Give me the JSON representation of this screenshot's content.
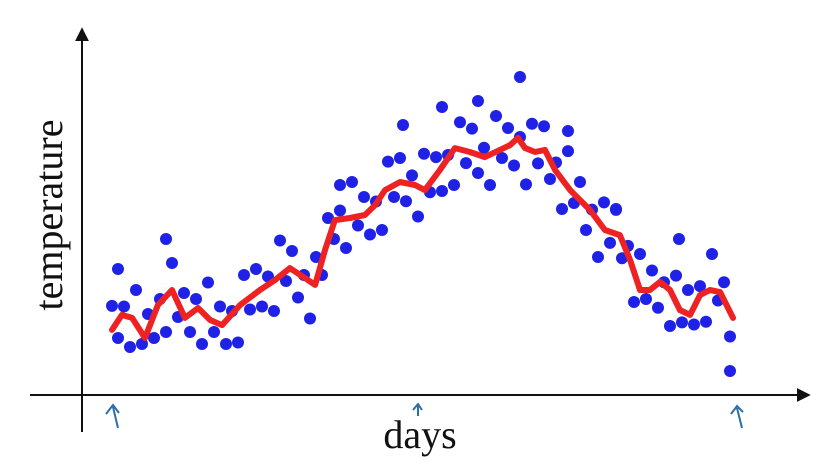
{
  "chart_data": {
    "type": "scatter",
    "x_label": "days",
    "y_label": "temperature",
    "xlim": [
      0,
      241
    ],
    "ylim": [
      0,
      120
    ],
    "series": [
      {
        "type": "scatter",
        "color": "#1f22e6",
        "x": [
          10,
          12,
          14,
          16,
          18,
          20,
          22,
          24,
          26,
          28,
          30,
          32,
          34,
          36,
          38,
          40,
          42,
          44,
          46,
          48,
          50,
          52,
          54,
          56,
          58,
          60,
          62,
          64,
          66,
          68,
          70,
          72,
          74,
          76,
          78,
          80,
          82,
          84,
          86,
          88,
          90,
          92,
          94,
          96,
          98,
          100,
          102,
          104,
          106,
          108,
          110,
          112,
          114,
          116,
          118,
          120,
          122,
          124,
          126,
          128,
          130,
          132,
          134,
          136,
          138,
          140,
          142,
          144,
          146,
          148,
          150,
          152,
          154,
          156,
          158,
          160,
          162,
          164,
          166,
          168,
          170,
          172,
          174,
          176,
          178,
          180,
          182,
          184,
          186,
          188,
          190,
          192,
          194,
          196,
          198,
          200,
          202,
          204,
          206,
          208,
          210,
          212,
          214,
          216,
          146,
          132,
          162,
          107,
          178,
          199,
          216,
          12,
          28,
          86,
          120
        ],
        "values": [
          29.7,
          19,
          29.5,
          16,
          35,
          17,
          27,
          19,
          32,
          21,
          44,
          26,
          34,
          21,
          32,
          17,
          37.5,
          21,
          29.5,
          17,
          28,
          17.5,
          40,
          28.5,
          42,
          29.5,
          39.5,
          28,
          51.5,
          38,
          48,
          32.5,
          40,
          25.5,
          46,
          40,
          59,
          52,
          61.5,
          49,
          71,
          56.5,
          66,
          53.5,
          64.5,
          55,
          77.8,
          66,
          79,
          64.6,
          73.2,
          59.5,
          80.4,
          67.6,
          79.3,
          68,
          80,
          70,
          90.9,
          77.3,
          88.8,
          74,
          82.4,
          70,
          93,
          79,
          89,
          76.5,
          86,
          70.2,
          90.4,
          77.2,
          89.6,
          72,
          77.5,
          62,
          81.3,
          64,
          71,
          55,
          61.8,
          46,
          64.2,
          50.7,
          61.7,
          45.6,
          49.7,
          31,
          47,
          32,
          41.5,
          29.1,
          37.6,
          23,
          39.8,
          24.2,
          35,
          23.5,
          36.3,
          24.4,
          47,
          31.5,
          37.6,
          19.5,
          106,
          98,
          88,
          90,
          62,
          52,
          8,
          42,
          52,
          70,
          96
        ]
      },
      {
        "type": "line",
        "color": "#ee2222",
        "x": [
          10,
          13.3,
          16.7,
          21,
          25.3,
          30,
          34.3,
          38.7,
          42.7,
          46.7,
          52.7,
          59.3,
          64.3,
          69.3,
          74.3,
          77.7,
          81,
          84.3,
          89.3,
          94.3,
          97.7,
          101,
          106,
          111,
          114.3,
          119.3,
          124.3,
          129.3,
          134.3,
          139.3,
          142.7,
          145.3,
          147.7,
          151,
          154.3,
          157.7,
          162.7,
          169.3,
          174.3,
          179.3,
          182.7,
          186,
          189.3,
          192.7,
          196,
          199.3,
          202.7,
          206,
          209.3,
          212.7,
          217
        ],
        "values": [
          21.7,
          26.7,
          25.7,
          19,
          30,
          35,
          25.7,
          29,
          25,
          23.3,
          30,
          35,
          38.3,
          42.3,
          39,
          36.7,
          48.3,
          58.3,
          59,
          60,
          63.3,
          68.3,
          71,
          70,
          68.3,
          75,
          82.3,
          81,
          79.3,
          81.7,
          83.3,
          85.7,
          82.3,
          81,
          81.7,
          75,
          68.3,
          61.7,
          55,
          53.3,
          45,
          35,
          35,
          37.7,
          35,
          28.3,
          26.7,
          33.3,
          35,
          34.3,
          25.7
        ]
      }
    ]
  }
}
